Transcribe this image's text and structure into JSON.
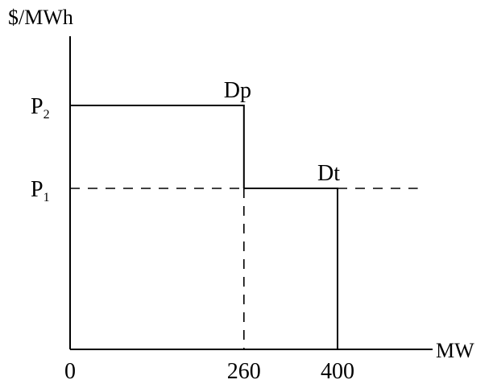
{
  "chart_data": {
    "type": "line",
    "ylabel": "$/MWh",
    "xlabel": "MW",
    "x_ticks": [
      "0",
      "260",
      "400"
    ],
    "x_values": [
      0,
      260,
      400
    ],
    "xlim": [
      0,
      520
    ],
    "price_levels": [
      {
        "label": "P",
        "subscript": "2",
        "level": 2
      },
      {
        "label": "P",
        "subscript": "1",
        "level": 1
      }
    ],
    "ylim": [
      0,
      3
    ],
    "series": [
      {
        "name": "Dp",
        "points": [
          [
            0,
            2
          ],
          [
            260,
            2
          ],
          [
            260,
            1
          ]
        ]
      },
      {
        "name": "Dt",
        "points": [
          [
            260,
            1
          ],
          [
            400,
            1
          ],
          [
            400,
            0
          ]
        ]
      }
    ],
    "dashed_guides": [
      {
        "from": [
          0,
          1
        ],
        "to": [
          260,
          1
        ]
      },
      {
        "from": [
          260,
          1
        ],
        "to": [
          260,
          0
        ]
      },
      {
        "from": [
          400,
          1
        ],
        "to": [
          520,
          1
        ]
      }
    ]
  }
}
